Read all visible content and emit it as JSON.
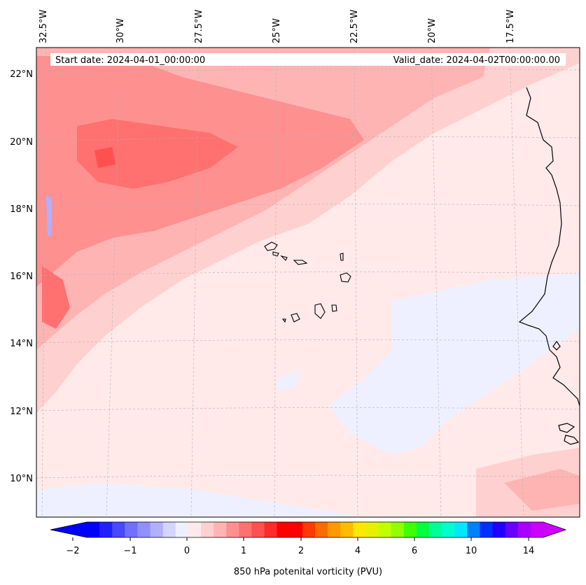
{
  "header": {
    "start_date": "Start date: 2024-04-01_00:00:00",
    "valid_date": "Valid_date: 2024-04-02T00:00:00.00"
  },
  "map": {
    "lon_range": [
      -32.5,
      -15.0
    ],
    "lat_range": [
      9.0,
      22.8
    ],
    "lon_labels": [
      "32.5°W",
      "30°W",
      "27.5°W",
      "25°W",
      "22.5°W",
      "20°W",
      "17.5°W"
    ],
    "lat_labels": [
      "22°N",
      "20°N",
      "18°N",
      "16°N",
      "14°N",
      "12°N",
      "10°N"
    ],
    "gridlines": true
  },
  "colorbar": {
    "label": "850 hPa potenital vorticity (PVU)",
    "tick_labels": [
      "−2",
      "−1",
      "0",
      "1",
      "2",
      "4",
      "6",
      "10",
      "14"
    ],
    "colors": [
      "#0000ff",
      "#2020ff",
      "#4848ff",
      "#7070ff",
      "#9090ff",
      "#b0b0ff",
      "#d4d4ff",
      "#eef0ff",
      "#ffe9e9",
      "#ffd0d0",
      "#ffb4b4",
      "#ff9090",
      "#ff7070",
      "#ff5050",
      "#ff2a2a",
      "#ff0000",
      "#ff0000",
      "#ff3a00",
      "#ff6a00",
      "#ff9900",
      "#ffbb00",
      "#ffe800",
      "#e8f000",
      "#c0ff00",
      "#90ff00",
      "#40ff00",
      "#00ff40",
      "#00ff99",
      "#00ffcc",
      "#00e8ff",
      "#0080ff",
      "#0030ff",
      "#2000ff",
      "#6600ff",
      "#aa00ff",
      "#cc00ff"
    ]
  }
}
